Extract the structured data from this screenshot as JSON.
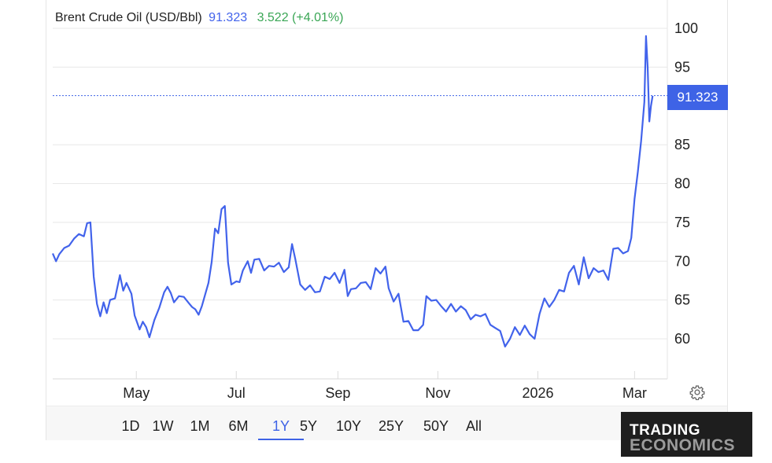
{
  "legend": {
    "name": "Brent Crude Oil (USD/Bbl)",
    "price": "91.323",
    "change": "3.522 (+4.01%)"
  },
  "price_tag": "91.323",
  "colors": {
    "line": "#4263eb",
    "price_tag_bg": "#3e63e6",
    "change": "#3aa655",
    "grid": "#e8e8e8"
  },
  "range_buttons": [
    "1D",
    "1W",
    "1M",
    "6M",
    "1Y",
    "5Y",
    "10Y",
    "25Y",
    "50Y",
    "All"
  ],
  "active_range": "1Y",
  "logo": {
    "line1": "TRADING",
    "line2": "ECONOMICS"
  },
  "icons": {
    "settings": "gear-icon"
  },
  "chart_data": {
    "type": "line",
    "title": "",
    "xlabel": "",
    "ylabel": "",
    "y_ticks": [
      60,
      65,
      70,
      75,
      80,
      85,
      95,
      100
    ],
    "y_tick_labels": [
      "60",
      "65",
      "70",
      "75",
      "80",
      "85",
      "95",
      "100"
    ],
    "ylim": [
      55.3,
      102
    ],
    "x_ticks": [
      "2025-05-01",
      "2025-07-01",
      "2025-09-01",
      "2025-11-01",
      "2026-01-01",
      "2026-03-01"
    ],
    "x_tick_labels": [
      "May",
      "Jul",
      "Sep",
      "Nov",
      "2026",
      "Mar"
    ],
    "xlim": [
      "2025-03-11",
      "2026-03-21"
    ],
    "grid": true,
    "last_value_line": 91.323,
    "series": [
      {
        "values": [
          [
            "2025-03-11",
            71.0
          ],
          [
            "2025-03-13",
            70.0
          ],
          [
            "2025-03-15",
            70.9
          ],
          [
            "2025-03-18",
            71.7
          ],
          [
            "2025-03-21",
            72.0
          ],
          [
            "2025-03-24",
            72.9
          ],
          [
            "2025-03-27",
            73.5
          ],
          [
            "2025-03-30",
            73.2
          ],
          [
            "2025-04-01",
            74.9
          ],
          [
            "2025-04-03",
            75.0
          ],
          [
            "2025-04-05",
            68.0
          ],
          [
            "2025-04-07",
            64.5
          ],
          [
            "2025-04-09",
            62.9
          ],
          [
            "2025-04-11",
            64.7
          ],
          [
            "2025-04-13",
            63.3
          ],
          [
            "2025-04-15",
            65.0
          ],
          [
            "2025-04-18",
            65.2
          ],
          [
            "2025-04-21",
            68.2
          ],
          [
            "2025-04-23",
            66.2
          ],
          [
            "2025-04-25",
            67.2
          ],
          [
            "2025-04-28",
            65.8
          ],
          [
            "2025-04-30",
            63.0
          ],
          [
            "2025-05-03",
            61.2
          ],
          [
            "2025-05-05",
            62.2
          ],
          [
            "2025-05-07",
            61.5
          ],
          [
            "2025-05-09",
            60.2
          ],
          [
            "2025-05-12",
            62.4
          ],
          [
            "2025-05-15",
            64.0
          ],
          [
            "2025-05-18",
            66.0
          ],
          [
            "2025-05-20",
            66.7
          ],
          [
            "2025-05-22",
            65.9
          ],
          [
            "2025-05-24",
            64.7
          ],
          [
            "2025-05-27",
            65.5
          ],
          [
            "2025-05-30",
            65.4
          ],
          [
            "2025-06-02",
            64.6
          ],
          [
            "2025-06-04",
            64.1
          ],
          [
            "2025-06-06",
            63.8
          ],
          [
            "2025-06-08",
            63.1
          ],
          [
            "2025-06-10",
            64.2
          ],
          [
            "2025-06-12",
            65.7
          ],
          [
            "2025-06-14",
            67.2
          ],
          [
            "2025-06-16",
            69.9
          ],
          [
            "2025-06-18",
            74.2
          ],
          [
            "2025-06-20",
            73.6
          ],
          [
            "2025-06-22",
            76.7
          ],
          [
            "2025-06-24",
            77.1
          ],
          [
            "2025-06-26",
            69.8
          ],
          [
            "2025-06-28",
            67.0
          ],
          [
            "2025-07-01",
            67.4
          ],
          [
            "2025-07-03",
            67.3
          ],
          [
            "2025-07-05",
            68.8
          ],
          [
            "2025-07-08",
            70.0
          ],
          [
            "2025-07-10",
            68.5
          ],
          [
            "2025-07-12",
            70.2
          ],
          [
            "2025-07-15",
            70.3
          ],
          [
            "2025-07-18",
            68.8
          ],
          [
            "2025-07-21",
            69.4
          ],
          [
            "2025-07-24",
            69.3
          ],
          [
            "2025-07-27",
            69.8
          ],
          [
            "2025-07-30",
            68.6
          ],
          [
            "2025-08-02",
            69.2
          ],
          [
            "2025-08-04",
            72.2
          ],
          [
            "2025-08-06",
            70.3
          ],
          [
            "2025-08-09",
            67.0
          ],
          [
            "2025-08-12",
            66.3
          ],
          [
            "2025-08-15",
            66.9
          ],
          [
            "2025-08-18",
            66.0
          ],
          [
            "2025-08-21",
            66.1
          ],
          [
            "2025-08-24",
            68.0
          ],
          [
            "2025-08-27",
            67.7
          ],
          [
            "2025-08-30",
            68.5
          ],
          [
            "2025-09-02",
            67.2
          ],
          [
            "2025-09-05",
            68.9
          ],
          [
            "2025-09-07",
            65.5
          ],
          [
            "2025-09-09",
            66.4
          ],
          [
            "2025-09-12",
            66.5
          ],
          [
            "2025-09-15",
            67.2
          ],
          [
            "2025-09-18",
            67.3
          ],
          [
            "2025-09-21",
            66.4
          ],
          [
            "2025-09-24",
            69.1
          ],
          [
            "2025-09-27",
            68.4
          ],
          [
            "2025-09-30",
            69.3
          ],
          [
            "2025-10-02",
            66.5
          ],
          [
            "2025-10-05",
            64.8
          ],
          [
            "2025-10-08",
            65.8
          ],
          [
            "2025-10-11",
            62.2
          ],
          [
            "2025-10-14",
            62.3
          ],
          [
            "2025-10-17",
            61.1
          ],
          [
            "2025-10-20",
            61.1
          ],
          [
            "2025-10-23",
            61.8
          ],
          [
            "2025-10-25",
            65.5
          ],
          [
            "2025-10-28",
            64.9
          ],
          [
            "2025-10-31",
            65.0
          ],
          [
            "2025-11-03",
            64.2
          ],
          [
            "2025-11-06",
            63.5
          ],
          [
            "2025-11-09",
            64.5
          ],
          [
            "2025-11-12",
            63.5
          ],
          [
            "2025-11-15",
            64.2
          ],
          [
            "2025-11-18",
            63.7
          ],
          [
            "2025-11-21",
            62.5
          ],
          [
            "2025-11-24",
            63.1
          ],
          [
            "2025-11-27",
            62.9
          ],
          [
            "2025-11-30",
            63.2
          ],
          [
            "2025-12-03",
            61.8
          ],
          [
            "2025-12-06",
            61.4
          ],
          [
            "2025-12-09",
            61.0
          ],
          [
            "2025-12-12",
            59.0
          ],
          [
            "2025-12-15",
            60.0
          ],
          [
            "2025-12-18",
            61.5
          ],
          [
            "2025-12-21",
            60.5
          ],
          [
            "2025-12-24",
            61.7
          ],
          [
            "2025-12-27",
            60.6
          ],
          [
            "2025-12-30",
            60.0
          ],
          [
            "2026-01-02",
            63.2
          ],
          [
            "2026-01-05",
            65.2
          ],
          [
            "2026-01-08",
            64.1
          ],
          [
            "2026-01-11",
            65.0
          ],
          [
            "2026-01-14",
            66.3
          ],
          [
            "2026-01-17",
            66.1
          ],
          [
            "2026-01-20",
            68.5
          ],
          [
            "2026-01-23",
            69.4
          ],
          [
            "2026-01-26",
            67.0
          ],
          [
            "2026-01-29",
            70.5
          ],
          [
            "2026-02-01",
            67.8
          ],
          [
            "2026-02-04",
            69.1
          ],
          [
            "2026-02-07",
            68.6
          ],
          [
            "2026-02-10",
            68.8
          ],
          [
            "2026-02-13",
            67.6
          ],
          [
            "2026-02-16",
            71.6
          ],
          [
            "2026-02-19",
            71.7
          ],
          [
            "2026-02-22",
            71.0
          ],
          [
            "2026-02-25",
            71.3
          ],
          [
            "2026-02-27",
            73.0
          ],
          [
            "2026-03-01",
            78.0
          ],
          [
            "2026-03-03",
            81.5
          ],
          [
            "2026-03-05",
            85.5
          ],
          [
            "2026-03-07",
            90.5
          ],
          [
            "2026-03-08",
            99.0
          ],
          [
            "2026-03-09",
            95.0
          ],
          [
            "2026-03-10",
            88.0
          ],
          [
            "2026-03-11",
            90.0
          ],
          [
            "2026-03-12",
            91.3
          ]
        ]
      }
    ]
  }
}
